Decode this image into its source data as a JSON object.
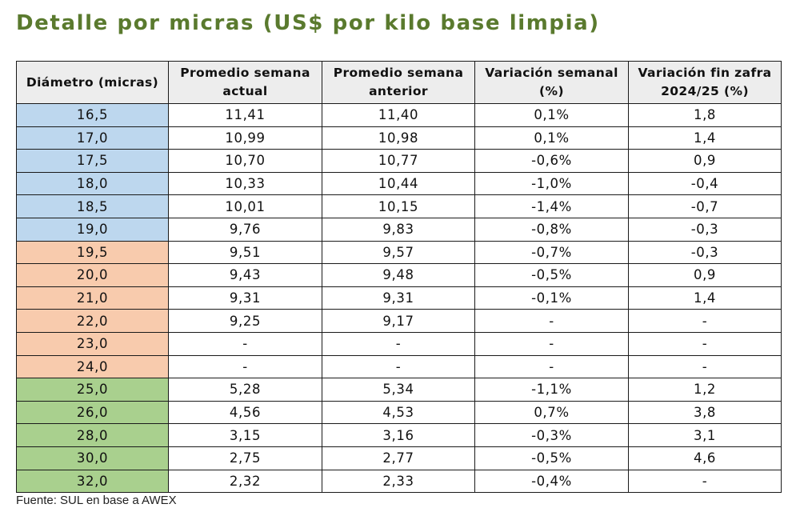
{
  "title": "Detalle por micras (US$ por kilo base limpia)",
  "colors": {
    "title": "#5a7a2e",
    "group_blue": "#bdd7ee",
    "group_orange": "#f8cbad",
    "group_green": "#a9d08e",
    "header_bg": "#ededed"
  },
  "table": {
    "headers": [
      "Diámetro (micras)",
      "Promedio semana actual",
      "Promedio semana anterior",
      "Variación semanal (%)",
      "Variación fin zafra 2024/25 (%)"
    ],
    "rows": [
      {
        "group": "blue",
        "cells": [
          "16,5",
          "11,41",
          "11,40",
          "0,1%",
          "1,8"
        ]
      },
      {
        "group": "blue",
        "cells": [
          "17,0",
          "10,99",
          "10,98",
          "0,1%",
          "1,4"
        ]
      },
      {
        "group": "blue",
        "cells": [
          "17,5",
          "10,70",
          "10,77",
          "-0,6%",
          "0,9"
        ]
      },
      {
        "group": "blue",
        "cells": [
          "18,0",
          "10,33",
          "10,44",
          "-1,0%",
          "-0,4"
        ]
      },
      {
        "group": "blue",
        "cells": [
          "18,5",
          "10,01",
          "10,15",
          "-1,4%",
          "-0,7"
        ]
      },
      {
        "group": "blue",
        "cells": [
          "19,0",
          "9,76",
          "9,83",
          "-0,8%",
          "-0,3"
        ]
      },
      {
        "group": "orange",
        "cells": [
          "19,5",
          "9,51",
          "9,57",
          "-0,7%",
          "-0,3"
        ]
      },
      {
        "group": "orange",
        "cells": [
          "20,0",
          "9,43",
          "9,48",
          "-0,5%",
          "0,9"
        ]
      },
      {
        "group": "orange",
        "cells": [
          "21,0",
          "9,31",
          "9,31",
          "-0,1%",
          "1,4"
        ]
      },
      {
        "group": "orange",
        "cells": [
          "22,0",
          "9,25",
          "9,17",
          "-",
          "-"
        ]
      },
      {
        "group": "orange",
        "cells": [
          "23,0",
          "-",
          "-",
          "-",
          "-"
        ]
      },
      {
        "group": "orange",
        "cells": [
          "24,0",
          "-",
          "-",
          "-",
          "-"
        ]
      },
      {
        "group": "green",
        "cells": [
          "25,0",
          "5,28",
          "5,34",
          "-1,1%",
          "1,2"
        ]
      },
      {
        "group": "green",
        "cells": [
          "26,0",
          "4,56",
          "4,53",
          "0,7%",
          "3,8"
        ]
      },
      {
        "group": "green",
        "cells": [
          "28,0",
          "3,15",
          "3,16",
          "-0,3%",
          "3,1"
        ]
      },
      {
        "group": "green",
        "cells": [
          "30,0",
          "2,75",
          "2,77",
          "-0,5%",
          "4,6"
        ]
      },
      {
        "group": "green",
        "cells": [
          "32,0",
          "2,32",
          "2,33",
          "-0,4%",
          "-"
        ]
      }
    ]
  },
  "source": "Fuente: SUL en base a AWEX"
}
